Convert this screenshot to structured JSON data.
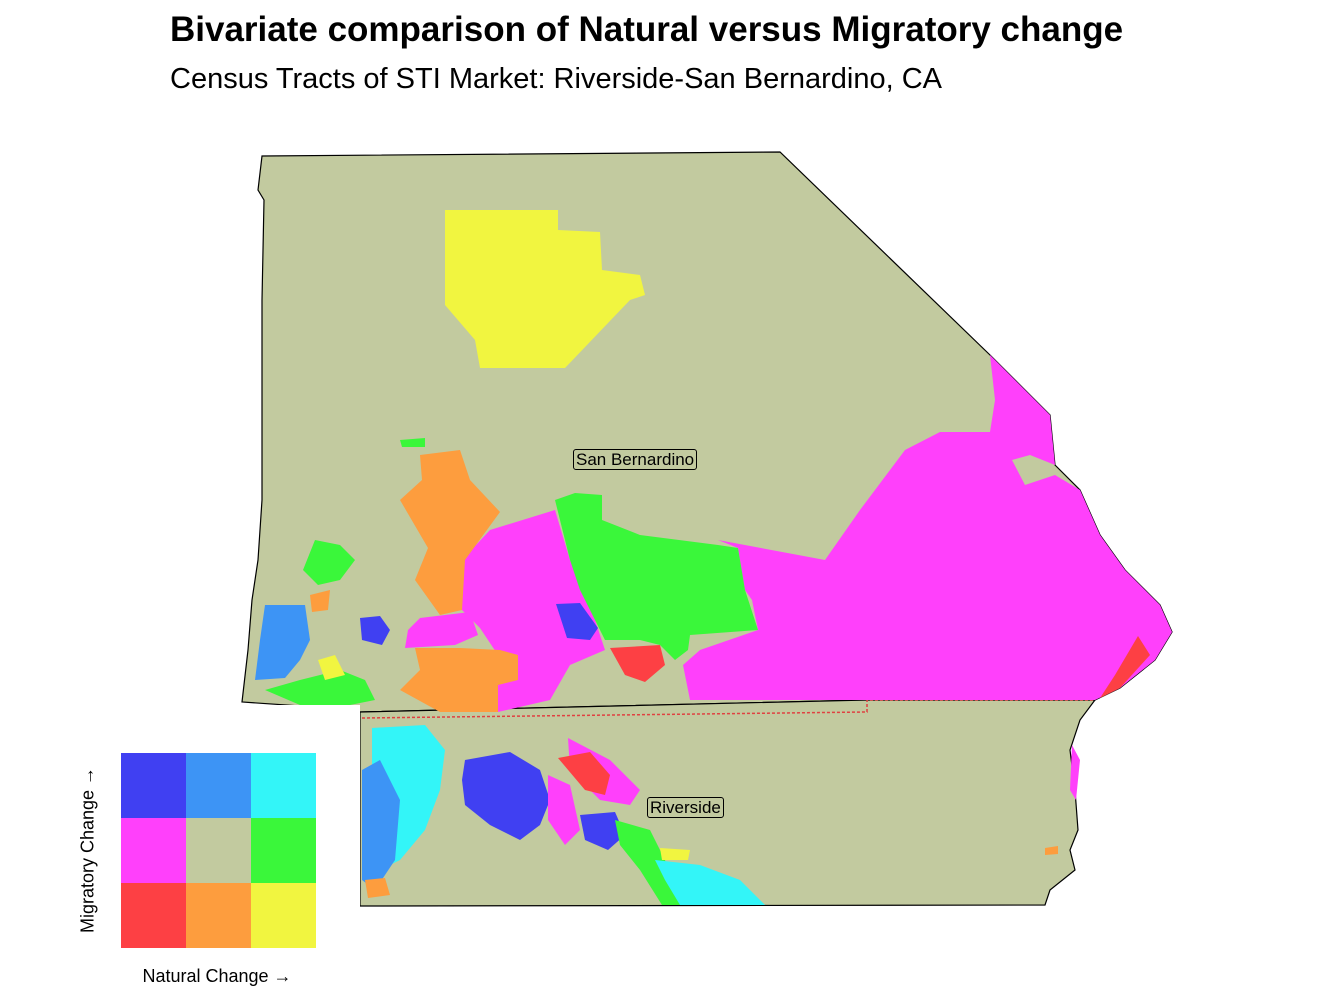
{
  "title": "Bivariate comparison of Natural versus Migratory change",
  "subtitle": "Census Tracts of STI Market: Riverside-San Bernardino, CA",
  "counties": [
    {
      "name": "San Bernardino"
    },
    {
      "name": "Riverside"
    }
  ],
  "legend": {
    "y_label": "Migratory Change →",
    "x_label": "Natural Change →",
    "cells": [
      {
        "migratory": "high",
        "natural": "low",
        "color": "#4040f2"
      },
      {
        "migratory": "high",
        "natural": "mid",
        "color": "#3d94f5"
      },
      {
        "migratory": "high",
        "natural": "high",
        "color": "#33f5f8"
      },
      {
        "migratory": "mid",
        "natural": "low",
        "color": "#ff40fb"
      },
      {
        "migratory": "mid",
        "natural": "mid",
        "color": "#c2ca9f"
      },
      {
        "migratory": "mid",
        "natural": "high",
        "color": "#3af73a"
      },
      {
        "migratory": "low",
        "natural": "low",
        "color": "#fd4044"
      },
      {
        "migratory": "low",
        "natural": "mid",
        "color": "#fd9d3e"
      },
      {
        "migratory": "low",
        "natural": "high",
        "color": "#f1f540"
      }
    ]
  },
  "colors": {
    "background": "#c2ca9f",
    "county_border": "#000000",
    "dashed_boundary": "#e04040"
  }
}
